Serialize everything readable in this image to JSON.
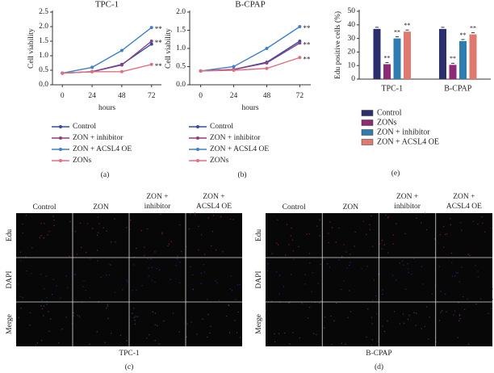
{
  "chart_data": [
    {
      "type": "line",
      "title": "TPC-1",
      "panel": "(a)",
      "x_label": "hours",
      "y_label": "Cell viability",
      "x": [
        0,
        24,
        48,
        72
      ],
      "xlim": [
        -8,
        80
      ],
      "xticks": [
        0,
        24,
        48,
        72
      ],
      "ylim": [
        0,
        2.5
      ],
      "yticks": [
        {
          "value": 0,
          "label": "0.0"
        },
        {
          "value": 0.5,
          "label": "0.5"
        },
        {
          "value": 1,
          "label": "1.0"
        },
        {
          "value": 1.5,
          "label": "1.5"
        },
        {
          "value": 2,
          "label": "2.0"
        },
        {
          "value": 2.5,
          "label": "2.5"
        }
      ],
      "series": [
        {
          "name": "Control",
          "color": "#2f4fa0",
          "values": [
            0.4,
            0.45,
            0.7,
            1.4
          ]
        },
        {
          "name": "ZON + inhibitor",
          "color": "#8b3f86",
          "values": [
            0.4,
            0.45,
            0.68,
            1.5
          ],
          "label": "**"
        },
        {
          "name": "ZON + ACSL4 OE",
          "color": "#3f80c8",
          "values": [
            0.4,
            0.6,
            1.18,
            1.97
          ],
          "label": "**"
        },
        {
          "name": "ZONs",
          "color": "#e07080",
          "values": [
            0.4,
            0.45,
            0.45,
            0.7
          ],
          "label": "**"
        }
      ]
    },
    {
      "type": "line",
      "title": "B-CPAP",
      "panel": "(b)",
      "x_label": "hours",
      "y_label": "Cell viability",
      "x": [
        0,
        24,
        48,
        72
      ],
      "xlim": [
        -8,
        80
      ],
      "xticks": [
        0,
        24,
        48,
        72
      ],
      "ylim": [
        0,
        2
      ],
      "yticks": [
        {
          "value": 0,
          "label": "0.0"
        },
        {
          "value": 0.5,
          "label": "0.5"
        },
        {
          "value": 1,
          "label": "1.0"
        },
        {
          "value": 1.5,
          "label": "1.5"
        },
        {
          "value": 2,
          "label": "2.0"
        }
      ],
      "series": [
        {
          "name": "Control",
          "color": "#2f4fa0",
          "values": [
            0.38,
            0.42,
            0.62,
            1.2
          ]
        },
        {
          "name": "ZON + inhibitor",
          "color": "#8b3f86",
          "values": [
            0.38,
            0.42,
            0.6,
            1.15
          ],
          "label": "**"
        },
        {
          "name": "ZON + ACSL4 OE",
          "color": "#3f80c8",
          "values": [
            0.38,
            0.5,
            1.0,
            1.6
          ],
          "label": "**"
        },
        {
          "name": "ZONs",
          "color": "#e07080",
          "values": [
            0.38,
            0.4,
            0.45,
            0.75
          ],
          "label": "**"
        }
      ]
    },
    {
      "type": "bar",
      "panel": "(e)",
      "y_label": "Edu positive cells (%)",
      "categories": [
        "TPC-1",
        "B-CPAP"
      ],
      "ylim": [
        0,
        50
      ],
      "yticks": [
        0,
        10,
        20,
        30,
        40,
        50
      ],
      "series": [
        {
          "name": "Control",
          "color": "#2c2f6e",
          "values": [
            37,
            37
          ]
        },
        {
          "name": "ZONs",
          "color": "#8e2a76",
          "values": [
            11,
            10.5
          ],
          "label": "**"
        },
        {
          "name": "ZON + inhibitor",
          "color": "#2f7db0",
          "values": [
            30,
            28
          ],
          "label": "**"
        },
        {
          "name": "ZON + ACSL4 OE",
          "color": "#e07a70",
          "values": [
            35,
            33
          ],
          "label": "**"
        }
      ]
    }
  ],
  "microscopy": [
    {
      "panel": "(c)",
      "caption": "TPC-1",
      "columns": [
        [
          "Control"
        ],
        [
          "ZON"
        ],
        [
          "ZON +",
          "inhibitor"
        ],
        [
          "ZON +",
          "ACSL4 OE"
        ]
      ],
      "rows": [
        "Edu",
        "DAPI",
        "Merge"
      ]
    },
    {
      "panel": "(d)",
      "caption": "B-CPAP",
      "columns": [
        [
          "Control"
        ],
        [
          "ZON"
        ],
        [
          "ZON +",
          "inhibitor"
        ],
        [
          "ZON +",
          "ACSL4 OE"
        ]
      ],
      "rows": [
        "Edu",
        "DAPI",
        "Merge"
      ]
    }
  ]
}
